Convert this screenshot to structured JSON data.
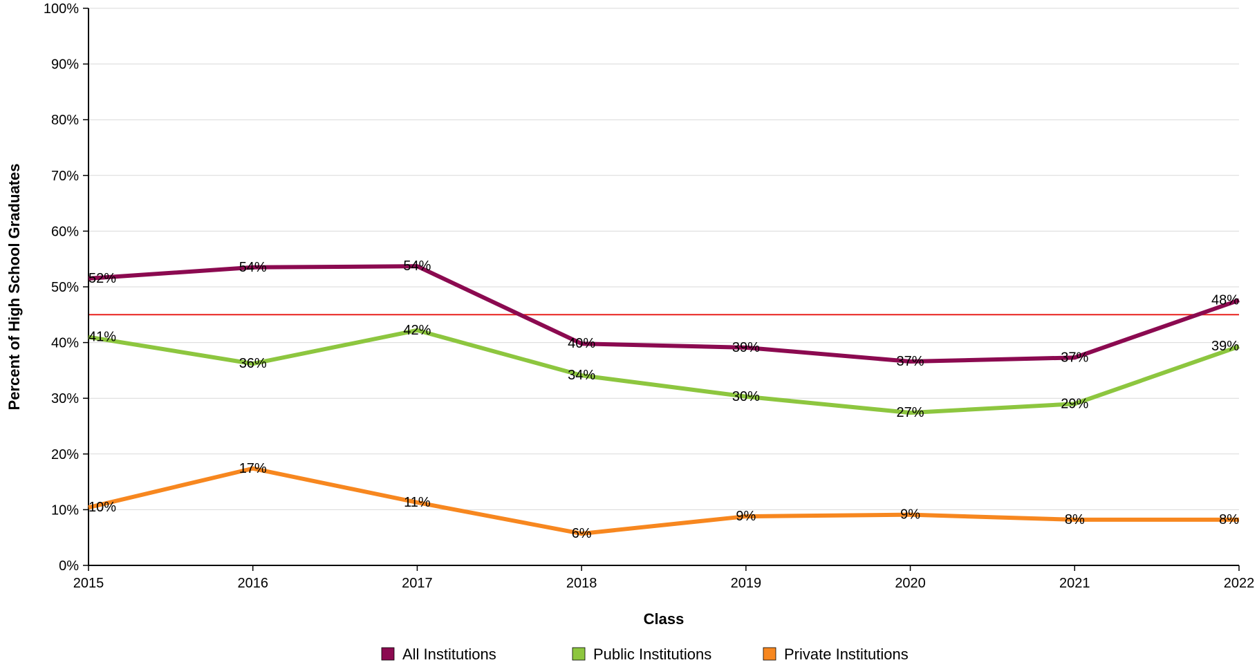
{
  "chart_data": {
    "type": "line",
    "title": "",
    "xlabel": "Class",
    "ylabel": "Percent of High School Graduates",
    "categories": [
      "2015",
      "2016",
      "2017",
      "2018",
      "2019",
      "2020",
      "2021",
      "2022"
    ],
    "ylim": [
      0,
      100
    ],
    "yticks": [
      0,
      10,
      20,
      30,
      40,
      50,
      60,
      70,
      80,
      90,
      100
    ],
    "ytick_labels": [
      "0%",
      "10%",
      "20%",
      "30%",
      "40%",
      "50%",
      "60%",
      "70%",
      "80%",
      "90%",
      "100%"
    ],
    "grid": true,
    "legend_position": "bottom",
    "reference_line": {
      "value": 45,
      "color": "#e8201c"
    },
    "series": [
      {
        "name": "All Institutions",
        "color": "#8b0a50",
        "values": [
          51.5,
          53.5,
          53.7,
          39.8,
          39.1,
          36.6,
          37.3,
          47.6
        ],
        "labels": [
          "52%",
          "54%",
          "54%",
          "40%",
          "39%",
          "37%",
          "37%",
          "48%"
        ]
      },
      {
        "name": "Public Institutions",
        "color": "#8dc63f",
        "values": [
          41.0,
          36.2,
          42.2,
          34.1,
          30.3,
          27.4,
          29.0,
          39.3
        ],
        "labels": [
          "41%",
          "36%",
          "42%",
          "34%",
          "30%",
          "27%",
          "29%",
          "39%"
        ]
      },
      {
        "name": "Private Institutions",
        "color": "#f7871f",
        "values": [
          10.4,
          17.4,
          11.3,
          5.7,
          8.8,
          9.1,
          8.2,
          8.2
        ],
        "labels": [
          "10%",
          "17%",
          "11%",
          "6%",
          "9%",
          "9%",
          "8%",
          "8%"
        ]
      }
    ]
  },
  "colors": {
    "grid": "#d9d9d9",
    "axis": "#000000"
  }
}
